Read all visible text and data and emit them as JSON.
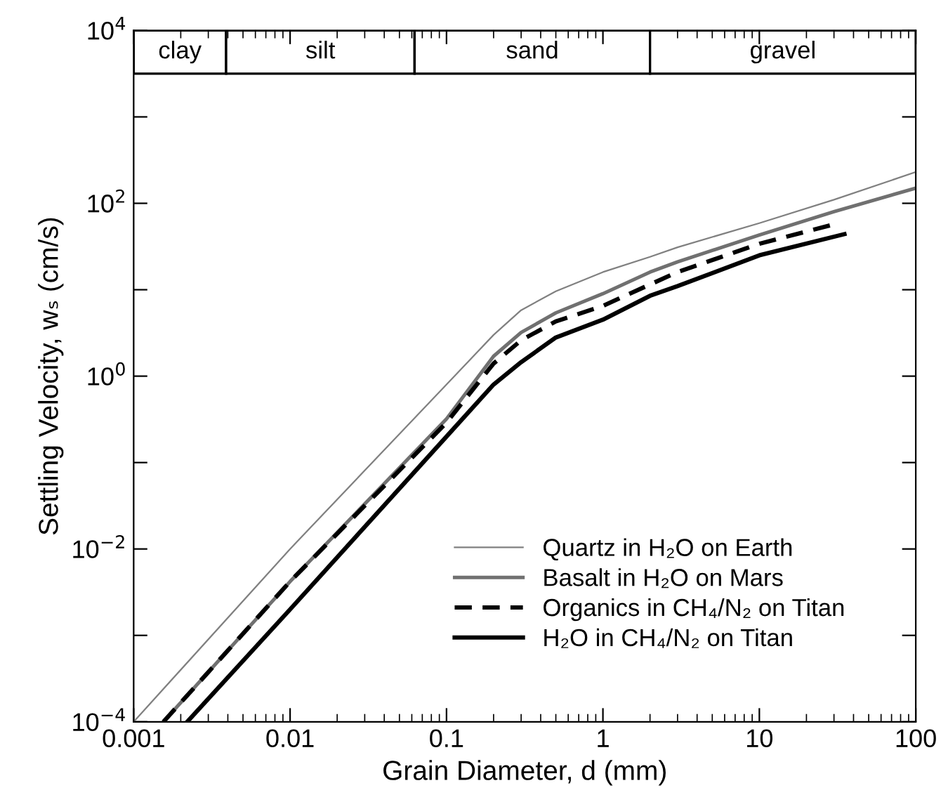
{
  "chart_data": {
    "type": "line",
    "xlabel": "Grain Diameter, d (mm)",
    "ylabel": "Settling Velocity, wₛ (cm/s)",
    "log": "xy",
    "xlim": [
      0.001,
      100
    ],
    "ylim": [
      0.0001,
      10000
    ],
    "xticks": [
      0.001,
      0.01,
      0.1,
      1,
      10,
      100
    ],
    "yticks": [
      {
        "value": 0.0001,
        "label": "10$^{−4}$"
      },
      {
        "value": 0.001,
        "label": null
      },
      {
        "value": 0.01,
        "label": "10$^{−2}$"
      },
      {
        "value": 0.1,
        "label": null
      },
      {
        "value": 1,
        "label": "10$^{0}$"
      },
      {
        "value": 10,
        "label": null
      },
      {
        "value": 100,
        "label": "10$^{2}$"
      },
      {
        "value": 1000,
        "label": null
      },
      {
        "value": 10000,
        "label": "10$^{4}$"
      }
    ],
    "grid": false,
    "legend": "bottom right",
    "bands": [
      {
        "axis": "x",
        "from": 0.001,
        "to": 0.0039,
        "label": "clay",
        "color": "#ffffff"
      },
      {
        "axis": "x",
        "from": 0.0039,
        "to": 0.0625,
        "label": "silt",
        "color": "#ffffff"
      },
      {
        "axis": "x",
        "from": 0.0625,
        "to": 2,
        "label": "sand",
        "color": "#ffffff"
      },
      {
        "axis": "x",
        "from": 2,
        "to": 100,
        "label": "gravel",
        "color": "#ffffff"
      }
    ],
    "series": [
      {
        "name": "Quartz in H₂O on Earth",
        "color": "#808080",
        "line_style": "solid",
        "x": [
          0.001,
          0.01,
          0.1,
          0.2,
          0.3,
          0.5,
          1,
          2,
          3,
          10,
          30,
          100
        ],
        "values": [
          0.0001,
          0.01,
          0.8,
          3.0,
          5.8,
          9.6,
          16,
          24,
          31,
          59,
          110,
          230
        ]
      },
      {
        "name": "Basalt in H₂O on Mars",
        "color": "#707070",
        "line_style": "solid",
        "x": [
          0.00155,
          0.01,
          0.1,
          0.2,
          0.3,
          0.5,
          1,
          2,
          3,
          10,
          30,
          100
        ],
        "values": [
          0.0001,
          0.0042,
          0.32,
          1.7,
          3.2,
          5.4,
          9,
          16,
          21,
          43,
          80,
          150
        ]
      },
      {
        "name": "Organics in CH₄/N₂ on Titan",
        "color": "#000000",
        "line_style": "dashed",
        "x": [
          0.00155,
          0.01,
          0.1,
          0.2,
          0.3,
          0.5,
          1,
          2,
          3,
          10,
          31
        ],
        "values": [
          0.0001,
          0.0042,
          0.29,
          1.4,
          2.6,
          4.3,
          6.5,
          11.5,
          16,
          34,
          58
        ]
      },
      {
        "name": "H₂O in CH₄/N₂ on Titan",
        "color": "#000000",
        "line_style": "solid",
        "x": [
          0.0022,
          0.01,
          0.1,
          0.2,
          0.3,
          0.5,
          1,
          2,
          3,
          10,
          35
        ],
        "values": [
          0.0001,
          0.002,
          0.2,
          0.8,
          1.45,
          2.8,
          4.5,
          8.5,
          11,
          25,
          44
        ]
      }
    ]
  }
}
